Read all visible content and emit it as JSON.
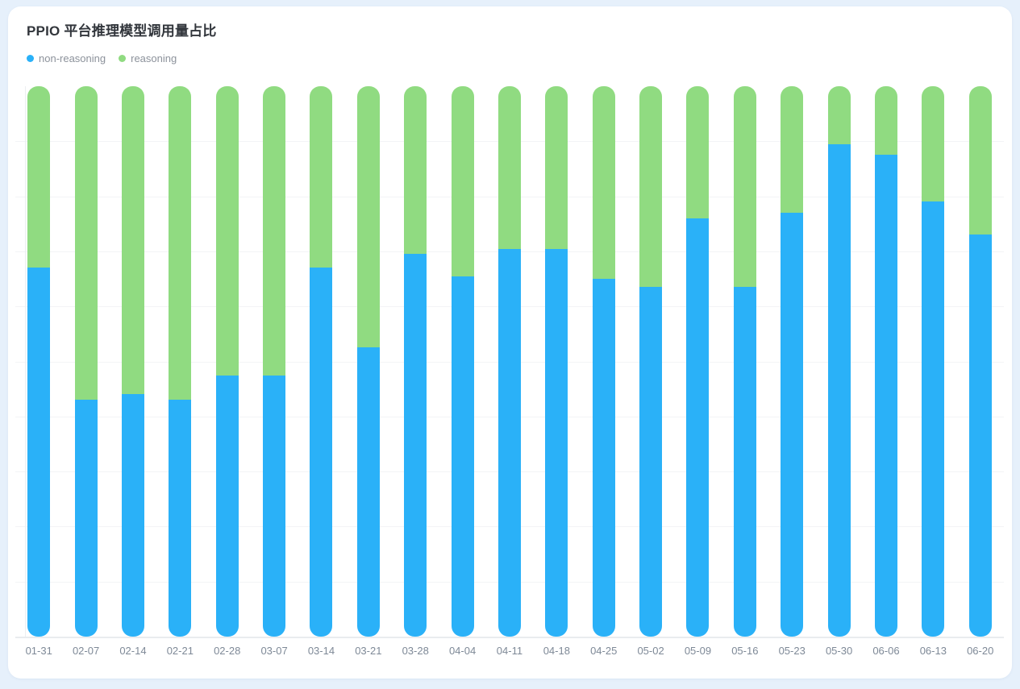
{
  "page": {
    "background_color": "#e6f0fb",
    "card_color": "#ffffff"
  },
  "card": {
    "title": "PPIO 平台推理模型调用量占比"
  },
  "legend": {
    "items": [
      {
        "label": "non-reasoning",
        "color": "#2ab1f8"
      },
      {
        "label": "reasoning",
        "color": "#90db81"
      }
    ]
  },
  "chart_data": {
    "type": "bar",
    "variant": "stacked-percent",
    "title": "PPIO 平台推理模型调用量占比",
    "categories": [
      "01-31",
      "02-07",
      "02-14",
      "02-21",
      "02-28",
      "03-07",
      "03-14",
      "03-21",
      "03-28",
      "04-04",
      "04-11",
      "04-18",
      "04-25",
      "05-02",
      "05-09",
      "05-16",
      "05-23",
      "05-30",
      "06-06",
      "06-13",
      "06-20"
    ],
    "series": [
      {
        "name": "non-reasoning",
        "color": "#2ab1f8",
        "stack_position": "bottom",
        "values": [
          67,
          43,
          44,
          43,
          47.5,
          47.5,
          67,
          52.5,
          69.5,
          65.5,
          70.5,
          70.5,
          65,
          63.5,
          76,
          63.5,
          77,
          89.5,
          87.5,
          79,
          73
        ]
      },
      {
        "name": "reasoning",
        "color": "#90db81",
        "stack_position": "top",
        "values": [
          33,
          57,
          56,
          57,
          52.5,
          52.5,
          33,
          47.5,
          30.5,
          34.5,
          29.5,
          29.5,
          35,
          36.5,
          24,
          36.5,
          23,
          10.5,
          12.5,
          21,
          27
        ]
      }
    ],
    "xlabel": "",
    "ylabel": "",
    "ylim": [
      0,
      100
    ],
    "unit": "%",
    "grid": true,
    "gridline_interval_percent": 10,
    "y_axis_tick_labels_visible": false,
    "legend_position": "top-left"
  }
}
